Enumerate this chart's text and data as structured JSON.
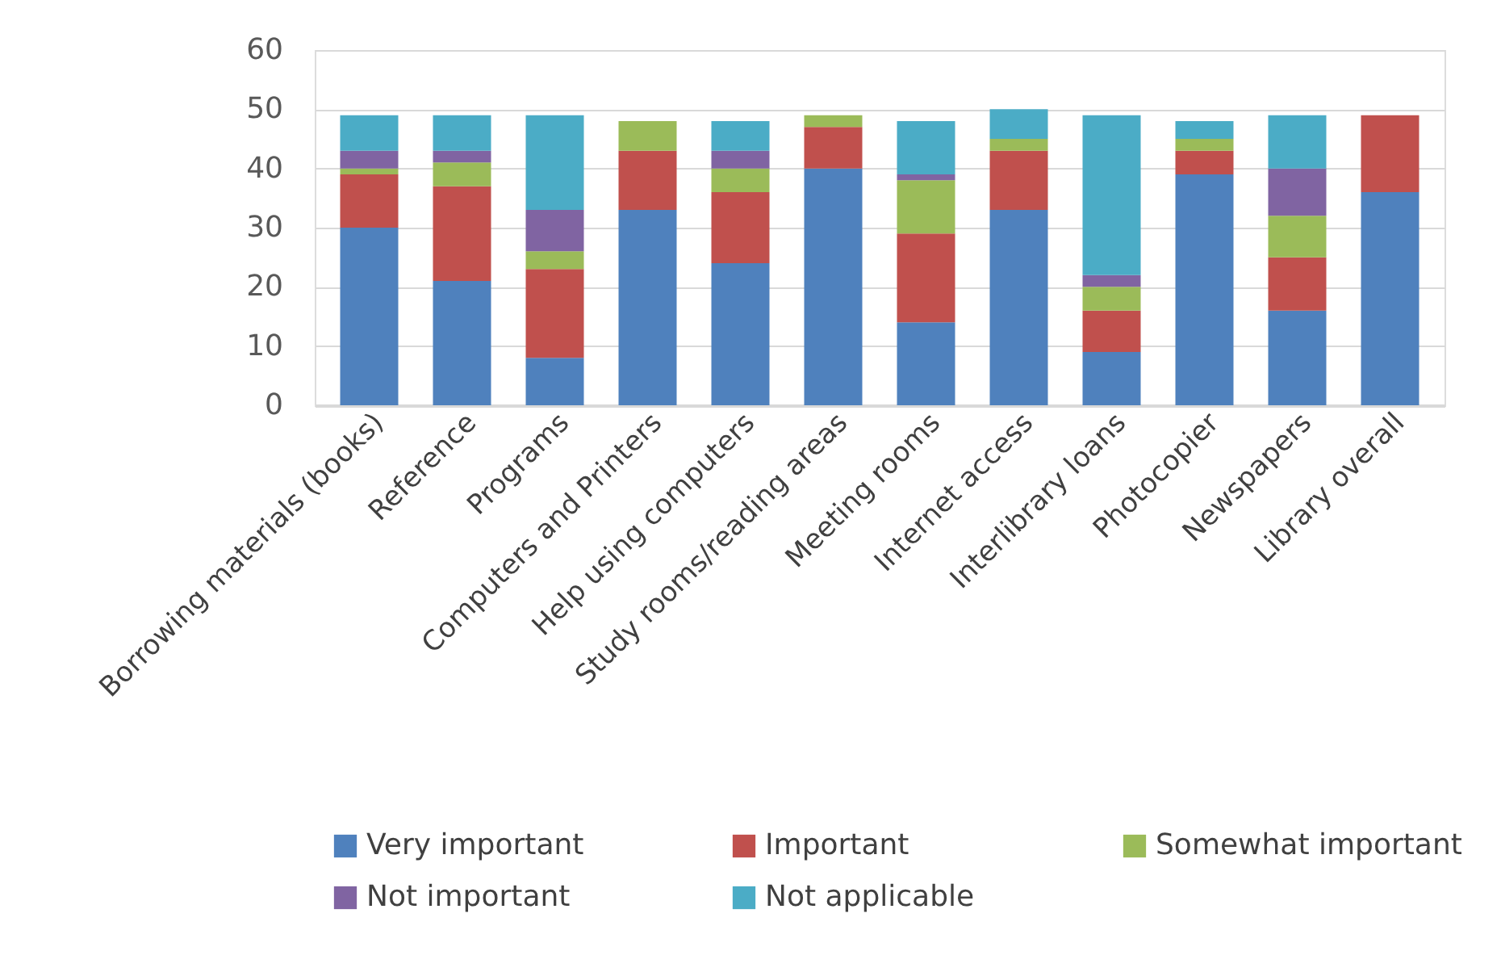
{
  "chart_data": {
    "type": "bar",
    "stacked": true,
    "categories": [
      "Borrowing materials (books)",
      "Reference",
      "Programs",
      "Computers and Printers",
      "Help using computers",
      "Study rooms/reading areas",
      "Meeting rooms",
      "Internet access",
      "Interlibrary loans",
      "Photocopier",
      "Newspapers",
      "Library overall"
    ],
    "series": [
      {
        "name": "Very important",
        "color": "#4f81bd",
        "values": [
          30,
          21,
          8,
          33,
          24,
          40,
          14,
          33,
          9,
          39,
          16,
          36
        ]
      },
      {
        "name": "Important",
        "color": "#c0504d",
        "values": [
          9,
          16,
          15,
          10,
          12,
          7,
          15,
          10,
          7,
          4,
          9,
          13
        ]
      },
      {
        "name": "Somewhat important",
        "color": "#9bbb59",
        "values": [
          1,
          4,
          3,
          5,
          4,
          2,
          9,
          2,
          4,
          2,
          7,
          0
        ]
      },
      {
        "name": "Not important",
        "color": "#8064a2",
        "values": [
          3,
          2,
          7,
          0,
          3,
          0,
          1,
          0,
          2,
          0,
          8,
          0
        ]
      },
      {
        "name": "Not applicable",
        "color": "#4bacc6",
        "values": [
          6,
          6,
          16,
          0,
          5,
          0,
          9,
          5,
          27,
          3,
          9,
          0
        ]
      }
    ],
    "ylim": [
      0,
      60
    ],
    "yticks": [
      0,
      10,
      20,
      30,
      40,
      50,
      60
    ],
    "grid": "y",
    "legend": "bottom"
  }
}
